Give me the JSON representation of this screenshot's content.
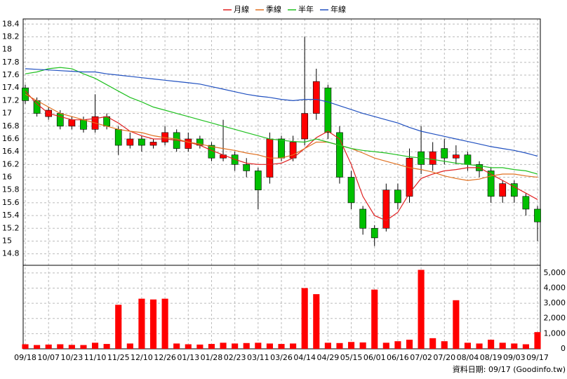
{
  "chart_data": {
    "type": "candlestick",
    "footer": "資料日期: 09/17 (Goodinfo.tw)",
    "categories": [
      "09/18",
      null,
      "10/07",
      null,
      "10/23",
      null,
      "11/10",
      null,
      "11/25",
      null,
      "12/10",
      null,
      "12/26",
      null,
      "01/13",
      null,
      "01/28",
      null,
      "02/23",
      null,
      "03/11",
      null,
      "03/26",
      null,
      "04/14",
      null,
      "04/29",
      null,
      "05/15",
      null,
      "06/01",
      null,
      "06/16",
      null,
      "07/02",
      null,
      "07/20",
      null,
      "08/04",
      null,
      "08/19",
      null,
      "09/03",
      null,
      "09/17"
    ],
    "open": [
      17.4,
      17.2,
      16.95,
      17.0,
      16.8,
      16.9,
      16.75,
      16.95,
      16.75,
      16.5,
      16.6,
      16.5,
      16.55,
      16.7,
      16.45,
      16.6,
      16.5,
      16.3,
      16.35,
      16.2,
      16.1,
      16.0,
      16.6,
      16.3,
      16.6,
      17.0,
      17.4,
      16.7,
      16.0,
      15.5,
      15.2,
      15.2,
      15.8,
      15.7,
      16.4,
      16.2,
      16.45,
      16.3,
      16.35,
      16.2,
      16.1,
      15.7,
      15.9,
      15.7,
      15.5
    ],
    "high": [
      17.45,
      17.25,
      17.1,
      17.05,
      16.95,
      16.95,
      17.3,
      17.0,
      16.8,
      16.7,
      16.65,
      16.6,
      16.8,
      16.75,
      16.7,
      16.65,
      16.55,
      16.9,
      16.4,
      16.3,
      16.15,
      16.7,
      16.65,
      16.65,
      18.2,
      17.7,
      17.45,
      16.8,
      16.1,
      15.55,
      15.25,
      15.9,
      15.9,
      16.45,
      16.8,
      16.55,
      16.6,
      16.5,
      16.4,
      16.25,
      16.15,
      15.95,
      15.95,
      15.75,
      15.55
    ],
    "low": [
      17.15,
      16.95,
      16.9,
      16.75,
      16.75,
      16.7,
      16.7,
      16.75,
      16.35,
      16.45,
      16.4,
      16.45,
      16.5,
      16.4,
      16.4,
      16.45,
      16.25,
      16.25,
      16.1,
      16.0,
      15.5,
      15.9,
      16.25,
      16.25,
      16.5,
      16.9,
      16.6,
      15.9,
      15.5,
      15.1,
      14.92,
      15.15,
      15.5,
      15.6,
      16.05,
      16.1,
      16.2,
      16.2,
      16.1,
      16.0,
      15.6,
      15.6,
      15.6,
      15.4,
      15.0
    ],
    "close": [
      17.2,
      17.0,
      17.05,
      16.8,
      16.9,
      16.75,
      16.95,
      16.8,
      16.5,
      16.6,
      16.5,
      16.55,
      16.7,
      16.45,
      16.6,
      16.5,
      16.3,
      16.35,
      16.2,
      16.1,
      15.8,
      16.6,
      16.3,
      16.55,
      17.0,
      17.5,
      16.7,
      16.0,
      15.6,
      15.2,
      15.05,
      15.8,
      15.6,
      16.3,
      16.2,
      16.4,
      16.3,
      16.35,
      16.2,
      16.1,
      15.7,
      15.9,
      15.7,
      15.5,
      15.3
    ],
    "up_color": "#ff0000",
    "down_color": "#00c000",
    "series": [
      {
        "name": "月線",
        "color": "#e02020",
        "values": [
          17.35,
          17.15,
          17.0,
          16.95,
          16.9,
          16.9,
          16.92,
          16.95,
          16.85,
          16.72,
          16.65,
          16.6,
          16.6,
          16.58,
          16.55,
          16.5,
          16.42,
          16.35,
          16.28,
          16.22,
          16.2,
          16.2,
          16.22,
          16.3,
          16.45,
          16.62,
          16.72,
          16.6,
          16.2,
          15.7,
          15.4,
          15.32,
          15.45,
          15.75,
          15.98,
          16.05,
          16.1,
          16.12,
          16.15,
          16.15,
          16.05,
          15.95,
          15.85,
          15.75,
          15.65
        ]
      },
      {
        "name": "季線",
        "color": "#e07020",
        "values": [
          17.3,
          17.2,
          17.1,
          17.0,
          16.95,
          16.9,
          16.85,
          16.8,
          16.75,
          16.72,
          16.7,
          16.65,
          16.62,
          16.6,
          16.55,
          16.52,
          16.48,
          16.45,
          16.42,
          16.38,
          16.35,
          16.3,
          16.3,
          16.35,
          16.45,
          16.55,
          16.55,
          16.5,
          16.45,
          16.38,
          16.3,
          16.25,
          16.2,
          16.15,
          16.12,
          16.08,
          16.02,
          15.98,
          15.95,
          15.97,
          16.02,
          16.05,
          16.05,
          16.02,
          16.0
        ]
      },
      {
        "name": "半年",
        "color": "#20c020",
        "values": [
          17.62,
          17.65,
          17.7,
          17.72,
          17.7,
          17.62,
          17.55,
          17.45,
          17.35,
          17.25,
          17.18,
          17.1,
          17.05,
          17.0,
          16.95,
          16.9,
          16.85,
          16.8,
          16.75,
          16.7,
          16.65,
          16.6,
          16.58,
          16.56,
          16.55,
          16.6,
          16.55,
          16.5,
          16.45,
          16.42,
          16.4,
          16.38,
          16.35,
          16.32,
          16.3,
          16.28,
          16.25,
          16.22,
          16.2,
          16.18,
          16.15,
          16.15,
          16.12,
          16.1,
          16.05
        ]
      },
      {
        "name": "年線",
        "color": "#2050c0",
        "values": [
          17.7,
          17.69,
          17.68,
          17.67,
          17.66,
          17.65,
          17.65,
          17.62,
          17.6,
          17.58,
          17.56,
          17.54,
          17.52,
          17.5,
          17.48,
          17.46,
          17.42,
          17.38,
          17.34,
          17.3,
          17.27,
          17.25,
          17.22,
          17.2,
          17.22,
          17.22,
          17.18,
          17.12,
          17.06,
          17.0,
          16.95,
          16.9,
          16.85,
          16.78,
          16.72,
          16.68,
          16.64,
          16.6,
          16.56,
          16.52,
          16.48,
          16.45,
          16.42,
          16.38,
          16.33
        ]
      }
    ],
    "ylim": [
      14.62,
      18.48
    ],
    "yticks": [
      14.8,
      15,
      15.2,
      15.4,
      15.6,
      15.8,
      16,
      16.2,
      16.4,
      16.6,
      16.8,
      17,
      17.2,
      17.4,
      17.6,
      17.8,
      18,
      18.2,
      18.4
    ],
    "volume": {
      "color": "#ff0000",
      "values": [
        300,
        250,
        280,
        300,
        260,
        250,
        400,
        320,
        2900,
        350,
        3300,
        3250,
        3300,
        350,
        300,
        280,
        320,
        400,
        350,
        380,
        400,
        350,
        320,
        350,
        4000,
        3600,
        400,
        380,
        450,
        420,
        3900,
        400,
        500,
        600,
        5200,
        700,
        500,
        3200,
        400,
        350,
        600,
        400,
        350,
        300,
        1100
      ],
      "ylim": [
        0,
        5500
      ],
      "yticks": [
        0,
        {
          "value": 1000,
          "label": "1,000"
        },
        {
          "value": 2000,
          "label": "2,000"
        },
        {
          "value": 3000,
          "label": "3,000"
        },
        {
          "value": 4000,
          "label": "4,000"
        },
        {
          "value": 5000,
          "label": "5,000"
        }
      ]
    },
    "grid": true
  }
}
